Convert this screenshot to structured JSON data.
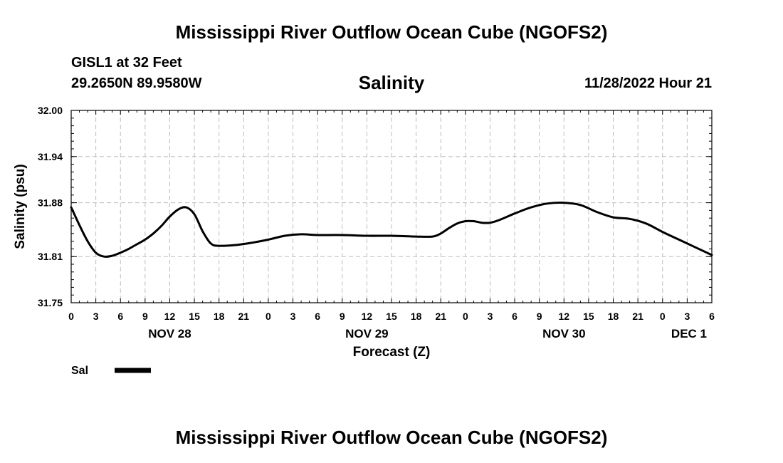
{
  "header": {
    "main_title": "Mississippi River Outflow Ocean Cube (NGOFS2)",
    "station_name": "GISL1 at 32 Feet",
    "station_coords": "29.2650N  89.9580W",
    "chart_title": "Salinity",
    "datetime": "11/28/2022 Hour 21"
  },
  "footer": {
    "title": "Mississippi River Outflow Ocean Cube (NGOFS2)"
  },
  "colors": {
    "line": "#000000",
    "grid": "#bdbdbd",
    "axis": "#000000"
  },
  "chart_data": {
    "type": "line",
    "title": "Salinity",
    "xlabel": "Forecast (Z)",
    "ylabel": "Salinity (psu)",
    "xlim": [
      0,
      78
    ],
    "ylim": [
      31.75,
      32.0
    ],
    "yticks": [
      "31.75",
      "31.81",
      "31.88",
      "31.94",
      "32.00"
    ],
    "xtick_labels": [
      "0",
      "3",
      "6",
      "9",
      "12",
      "15",
      "18",
      "21",
      "0",
      "3",
      "6",
      "9",
      "12",
      "15",
      "18",
      "21",
      "0",
      "3",
      "6",
      "9",
      "12",
      "15",
      "18",
      "21",
      "0",
      "3",
      "6"
    ],
    "date_labels": [
      {
        "hour": 12,
        "label": "NOV 28"
      },
      {
        "hour": 36,
        "label": "NOV 29"
      },
      {
        "hour": 60,
        "label": "NOV 30"
      },
      {
        "hour": 78,
        "label": "DEC 1"
      }
    ],
    "grid": true,
    "legend": {
      "position": "bottom-left",
      "entries": [
        "Sal"
      ]
    },
    "series": [
      {
        "name": "Sal",
        "x": [
          0,
          1,
          2,
          3,
          4,
          5,
          6,
          7,
          8,
          9,
          10,
          11,
          12,
          13,
          14,
          15,
          16,
          17,
          18,
          20,
          22,
          24,
          26,
          28,
          30,
          33,
          36,
          39,
          42,
          44,
          45,
          46,
          47,
          48,
          49,
          50,
          51,
          52,
          54,
          56,
          58,
          60,
          62,
          64,
          66,
          68,
          70,
          72,
          74,
          76,
          78
        ],
        "values": [
          31.874,
          31.851,
          31.83,
          31.815,
          31.81,
          31.811,
          31.815,
          31.82,
          31.826,
          31.832,
          31.84,
          31.85,
          31.862,
          31.871,
          31.874,
          31.865,
          31.843,
          31.827,
          31.824,
          31.825,
          31.828,
          31.832,
          31.837,
          31.839,
          31.838,
          31.838,
          31.837,
          31.837,
          31.836,
          31.836,
          31.84,
          31.847,
          31.853,
          31.856,
          31.856,
          31.854,
          31.854,
          31.857,
          31.866,
          31.874,
          31.879,
          31.88,
          31.877,
          31.868,
          31.861,
          31.859,
          31.853,
          31.842,
          31.832,
          31.822,
          31.812
        ]
      }
    ]
  }
}
